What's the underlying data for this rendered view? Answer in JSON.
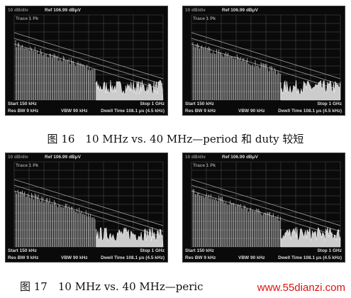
{
  "figures": [
    {
      "panels": [
        {
          "header": {
            "scale": "10 dB/div",
            "ref": "Ref 106.99 dBμV",
            "trace": "Trace 1 Pk"
          },
          "footer": {
            "start": "Start 150 kHz",
            "stop": "Stop 1 GHz",
            "rbw": "Res BW 9 kHz",
            "vbw": "VBW 90 kHz",
            "dwell": "Dwell Time 108.1 μs (4.5 kHz)"
          }
        },
        {
          "header": {
            "scale": "10 dB/div",
            "ref": "Ref 106.99 dBμV",
            "trace": "Trace 1 Pk"
          },
          "footer": {
            "start": "Start 150 kHz",
            "stop": "Stop 1 GHz",
            "rbw": "Res BW 9 kHz",
            "vbw": "VBW 90 kHz",
            "dwell": "Dwell Time 108.1 μs (4.5 kHz)"
          }
        }
      ],
      "caption": "图 16　10 MHz vs. 40 MHz—period 和 duty 较短"
    },
    {
      "panels": [
        {
          "header": {
            "scale": "10 dB/div",
            "ref": "Ref 106.99 dBμV",
            "trace": "Trace 1 Pk"
          },
          "footer": {
            "start": "Start 150 kHz",
            "stop": "Stop 1 GHz",
            "rbw": "Res BW 9 kHz",
            "vbw": "VBW 90 kHz",
            "dwell": "Dwell Time 108.1 μs (4.5 kHz)"
          }
        },
        {
          "header": {
            "scale": "10 dB/div",
            "ref": "Ref 106.99 dBμV",
            "trace": "Trace 1 Pk"
          },
          "footer": {
            "start": "Start 150 kHz",
            "stop": "Stop 1 GHz",
            "rbw": "Res BW 9 kHz",
            "vbw": "VBW 90 kHz",
            "dwell": "Dwell Time 108.1 μs (4.5 kHz)"
          }
        }
      ],
      "caption": "图 17　10 MHz vs. 40 MHz—peric"
    }
  ],
  "watermark": "www.55dianzi.com"
}
